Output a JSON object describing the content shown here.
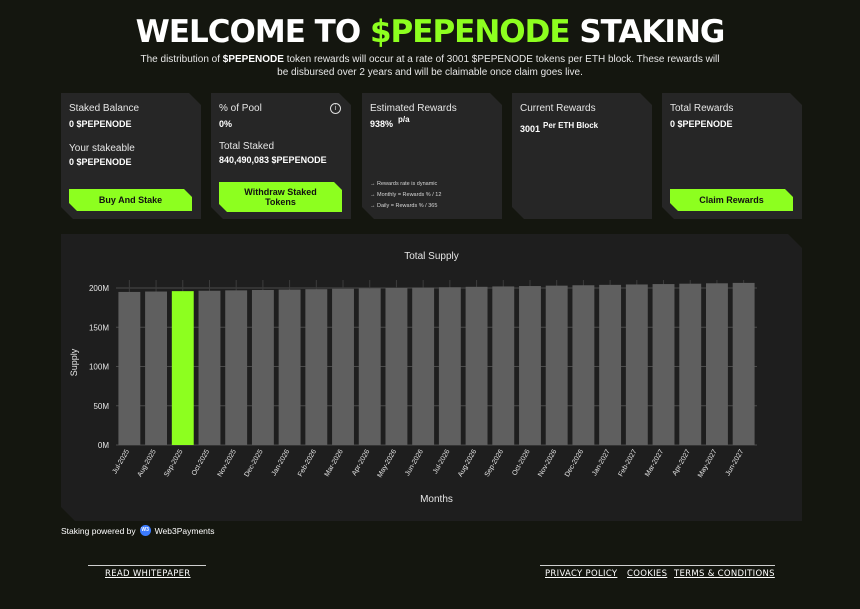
{
  "header": {
    "title_part1": "WELCOME TO ",
    "title_accent": "$PEPENODE",
    "title_part2": " STAKING",
    "desc_1": "The distribution of ",
    "desc_token": "$PEPENODE",
    "desc_2": " token rewards will occur at a rate of 3001 $PEPENODE tokens per ETH block. These rewards will be disbursed over 2 years and will be claimable once claim goes live."
  },
  "cards": {
    "staked": {
      "label": "Staked Balance",
      "value": "0 $PEPENODE",
      "stakeable_label": "Your stakeable",
      "stakeable_value": "0 $PEPENODE",
      "button": "Buy And Stake"
    },
    "pool": {
      "label": "% of Pool",
      "value": "0%",
      "total_label": "Total Staked",
      "total_value": "840,490,083 $PEPENODE",
      "button": "Withdraw Staked Tokens",
      "info_icon": "i"
    },
    "estimated": {
      "label": "Estimated Rewards",
      "value": "938%",
      "unit": "p/a",
      "notes": [
        "→ Rewards rate is dynamic",
        "→ Monthly = Rewards % / 12",
        "→ Daily = Rewards % / 365"
      ]
    },
    "current": {
      "label": "Current Rewards",
      "value": "3001",
      "unit": "Per ETH Block"
    },
    "total": {
      "label": "Total Rewards",
      "value": "0 $PEPENODE",
      "button": "Claim Rewards"
    }
  },
  "chart_data": {
    "type": "bar",
    "title": "Total Supply",
    "xlabel": "Months",
    "ylabel": "Supply",
    "ylim": [
      0,
      200000000
    ],
    "yticks": [
      "0M",
      "50M",
      "100M",
      "150M",
      "200M"
    ],
    "categories": [
      "Jul-2025",
      "Aug-2025",
      "Sep-2025",
      "Oct-2025",
      "Nov-2025",
      "Dec-2025",
      "Jan-2026",
      "Feb-2026",
      "Mar-2026",
      "Apr-2026",
      "May-2026",
      "Jun-2026",
      "Jul-2026",
      "Aug-2026",
      "Sep-2026",
      "Oct-2026",
      "Nov-2026",
      "Dec-2026",
      "Jan-2027",
      "Feb-2027",
      "Mar-2027",
      "Apr-2027",
      "May-2027",
      "Jun-2027"
    ],
    "values": [
      195000000,
      195500000,
      196000000,
      196500000,
      197000000,
      197500000,
      198000000,
      198500000,
      199000000,
      199500000,
      200000000,
      200500000,
      201000000,
      201500000,
      202000000,
      202500000,
      203000000,
      203500000,
      204000000,
      204500000,
      205000000,
      205500000,
      206000000,
      206500000
    ],
    "highlight_index": 2,
    "colors": {
      "bar": "#5f5f5f",
      "highlight": "#8dff1f",
      "grid": "#4a4a4a"
    },
    "grid": true
  },
  "footer": {
    "powered_text": "Staking powered by",
    "powered_brand": "Web3Payments",
    "logo_text": "W3",
    "whitepaper": "READ WHITEPAPER",
    "privacy": "PRIVACY POLICY",
    "cookies": "COOKIES",
    "terms": "TERMS & CONDITIONS"
  }
}
